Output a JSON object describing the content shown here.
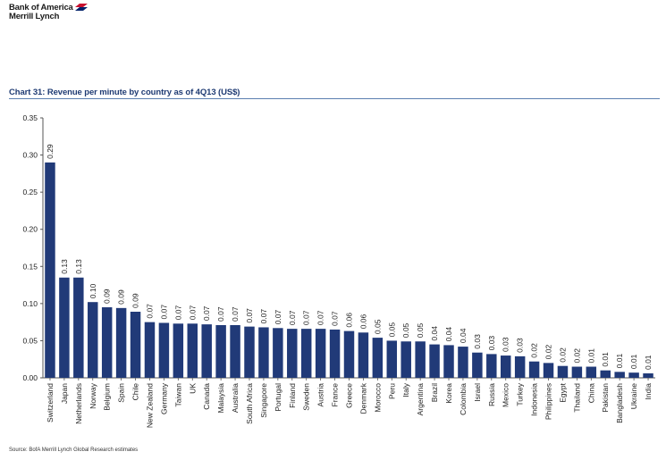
{
  "header": {
    "brand_line1": "Bank of America",
    "brand_line2": "Merrill Lynch",
    "chart_title": "Chart 31: Revenue per minute by country as of 4Q13 (US$)",
    "source": "Source: BofA Merrill Lynch Global Research estimates"
  },
  "colors": {
    "bar": "#213a78",
    "title": "#1f3b73",
    "rule": "#5b7fb0"
  },
  "chart_data": {
    "type": "bar",
    "title": "Chart 31: Revenue per minute by country as of 4Q13 (US$)",
    "xlabel": "",
    "ylabel": "",
    "ylim": [
      0,
      0.35
    ],
    "yticks": [
      "0.00",
      "0.05",
      "0.10",
      "0.15",
      "0.20",
      "0.25",
      "0.30",
      "0.35"
    ],
    "grid": false,
    "legend": "none",
    "categories": [
      "Switzerland",
      "Japan",
      "Netherlands",
      "Norway",
      "Belgium",
      "Spain",
      "Chile",
      "New Zealand",
      "Germany",
      "Taiwan",
      "UK",
      "Canada",
      "Malaysia",
      "Australia",
      "South Africa",
      "Singapore",
      "Portugal",
      "Finland",
      "Sweden",
      "Austria",
      "France",
      "Greece",
      "Denmark",
      "Morocco",
      "Peru",
      "Italy",
      "Argentina",
      "Brazil",
      "Korea",
      "Colombia",
      "Israel",
      "Russia",
      "Mexico",
      "Turkey",
      "Indonesia",
      "Philippines",
      "Egypt",
      "Thailand",
      "China",
      "Pakistan",
      "Bangladesh",
      "Ukraine",
      "India"
    ],
    "values": [
      0.29,
      0.135,
      0.135,
      0.102,
      0.095,
      0.094,
      0.089,
      0.075,
      0.074,
      0.073,
      0.073,
      0.072,
      0.071,
      0.071,
      0.069,
      0.068,
      0.067,
      0.066,
      0.066,
      0.066,
      0.065,
      0.063,
      0.061,
      0.054,
      0.05,
      0.049,
      0.049,
      0.045,
      0.044,
      0.042,
      0.034,
      0.032,
      0.03,
      0.029,
      0.022,
      0.02,
      0.016,
      0.015,
      0.015,
      0.01,
      0.008,
      0.007,
      0.006
    ],
    "labels": [
      "0.29",
      "0.13",
      "0.13",
      "0.10",
      "0.09",
      "0.09",
      "0.09",
      "0.07",
      "0.07",
      "0.07",
      "0.07",
      "0.07",
      "0.07",
      "0.07",
      "0.07",
      "0.07",
      "0.07",
      "0.07",
      "0.07",
      "0.07",
      "0.07",
      "0.06",
      "0.06",
      "0.05",
      "0.05",
      "0.05",
      "0.05",
      "0.04",
      "0.04",
      "0.04",
      "0.03",
      "0.03",
      "0.03",
      "0.03",
      "0.02",
      "0.02",
      "0.02",
      "0.02",
      "0.01",
      "0.01",
      "0.01",
      "0.01",
      "0.01"
    ]
  }
}
